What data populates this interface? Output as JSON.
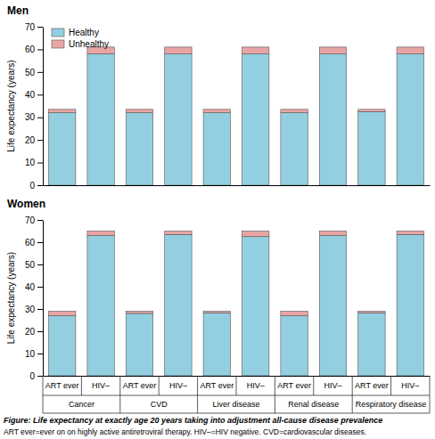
{
  "chart_data": [
    {
      "type": "bar",
      "title": "Men",
      "y_label": "Life expectancy (years)",
      "stacked": true,
      "legend": "top-left",
      "categories": [
        null,
        null,
        null,
        null,
        null,
        null,
        null,
        null,
        null,
        null
      ],
      "series": [
        {
          "name": "Healthy",
          "color": "#93cfe0",
          "values": [
            32,
            58,
            32,
            58,
            32,
            58,
            32,
            58,
            32.5,
            58
          ]
        },
        {
          "name": "Unhealthy",
          "color": "#e9a5a5",
          "values": [
            1.5,
            3,
            1.5,
            3,
            1.5,
            3,
            1.5,
            3,
            1,
            3
          ]
        }
      ],
      "ylim": [
        0,
        70
      ],
      "yticks": [
        0,
        10,
        20,
        30,
        40,
        50,
        60,
        70
      ]
    },
    {
      "type": "bar",
      "title": "Women",
      "y_label": "Life expectancy (years)",
      "stacked": true,
      "categories": [
        "ART ever",
        "HIV–",
        "ART ever",
        "HIV–",
        "ART ever",
        "HIV–",
        "ART ever",
        "HIV–",
        "ART ever",
        "HIV–"
      ],
      "groups": [
        "Cancer",
        "CVD",
        "Liver disease",
        "Renal disease",
        "Respiratory disease"
      ],
      "series": [
        {
          "name": "Healthy",
          "color": "#93cfe0",
          "values": [
            27,
            63,
            28,
            63.5,
            28.3,
            62.5,
            27,
            63,
            28.3,
            63.5
          ]
        },
        {
          "name": "Unhealthy",
          "color": "#e9a5a5",
          "values": [
            2,
            2,
            1,
            1.5,
            0.7,
            2.5,
            2,
            2,
            0.7,
            1.5
          ]
        }
      ],
      "ylim": [
        0,
        70
      ],
      "yticks": [
        0,
        10,
        20,
        30,
        40,
        50,
        60,
        70
      ]
    }
  ],
  "caption": {
    "title": "Figure: Life expectancy at exactly age 20 years taking into adjustment all-cause disease prevalence",
    "note": "ART ever=ever on on highly active antiretroviral therapy. HIV–=HIV negative. CVD=cardiovascular diseases."
  }
}
